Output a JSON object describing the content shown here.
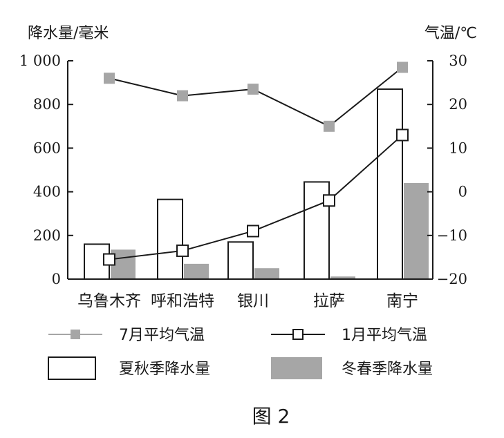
{
  "chart_data": {
    "type": "bar",
    "caption": "图 2",
    "left_axis": {
      "label": "降水量/毫米",
      "ylim": [
        0,
        1000
      ],
      "ticks": [
        "0",
        "200",
        "400",
        "600",
        "800",
        "1 000"
      ],
      "tick_values": [
        0,
        200,
        400,
        600,
        800,
        1000
      ]
    },
    "right_axis": {
      "label": "气温/℃",
      "ylim": [
        -20,
        30
      ],
      "ticks": [
        "-20",
        "-10",
        "0",
        "10",
        "20",
        "30"
      ],
      "tick_values": [
        -20,
        -10,
        0,
        10,
        20,
        30
      ]
    },
    "categories": [
      "乌鲁木齐",
      "呼和浩特",
      "银川",
      "拉萨",
      "南宁"
    ],
    "series": [
      {
        "name": "夏秋季降水量",
        "kind": "bar",
        "axis": "left",
        "color": "#ffffff",
        "values": [
          160,
          365,
          170,
          445,
          870
        ]
      },
      {
        "name": "冬春季降水量",
        "kind": "bar",
        "axis": "left",
        "color": "#a6a6a6",
        "values": [
          135,
          70,
          50,
          12,
          440
        ]
      },
      {
        "name": "7月平均气温",
        "kind": "line",
        "axis": "right",
        "color": "#a6a6a6",
        "values": [
          26,
          22,
          23.5,
          15,
          28.5
        ]
      },
      {
        "name": "1月平均气温",
        "kind": "line",
        "axis": "right",
        "color": "#1a1a1a",
        "values": [
          -15.5,
          -13.5,
          -9,
          -2,
          13
        ]
      }
    ],
    "grid": false,
    "legend_position": "bottom"
  }
}
